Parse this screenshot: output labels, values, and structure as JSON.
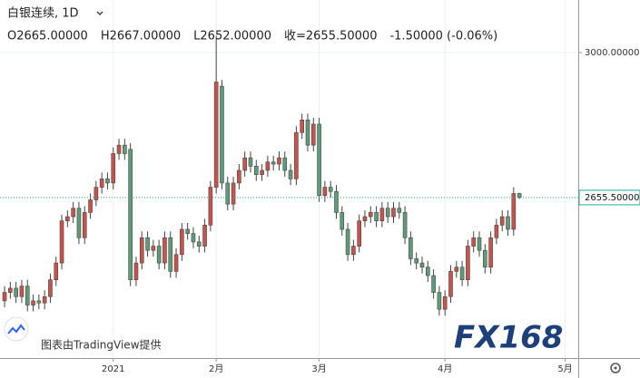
{
  "chart_data": {
    "type": "candlestick",
    "title": "白银连续, 1D",
    "legend_values": [
      "O2665.00000",
      "H2667.00000",
      "L2652.00000",
      "收=2655.50000",
      "-1.50000 (-0.06%)"
    ],
    "credit": "图表由TradingView提供",
    "watermark": "FX168",
    "up_color": "#c9524c",
    "down_color": "#5e9c78",
    "series": [
      {
        "open": [
          2410,
          2430,
          2440,
          2420,
          2445,
          2400,
          2410,
          2405,
          2420,
          2460,
          2500,
          2600,
          2610,
          2630,
          2560,
          2620,
          2650,
          2680,
          2700,
          2690,
          2760,
          2780,
          2770,
          2460,
          2500,
          2560,
          2530,
          2540,
          2500,
          2560,
          2480,
          2520,
          2580,
          2570,
          2550,
          2540,
          2590,
          2680,
          2920,
          2690,
          2640,
          2690,
          2720,
          2750,
          2730,
          2710,
          2720,
          2740,
          2735,
          2750,
          2720,
          2700,
          2810,
          2840,
          2780,
          2830,
          2660,
          2680,
          2670,
          2620,
          2580,
          2520,
          2540,
          2600,
          2610,
          2620,
          2600,
          2630,
          2610,
          2630,
          2620,
          2560,
          2510,
          2500,
          2490,
          2470,
          2430,
          2390,
          2420,
          2480,
          2490,
          2460,
          2540,
          2560,
          2530,
          2490,
          2560,
          2590,
          2610,
          2580,
          2665
        ],
        "high": [
          2445,
          2455,
          2455,
          2460,
          2460,
          2425,
          2425,
          2435,
          2475,
          2515,
          2615,
          2625,
          2645,
          2645,
          2635,
          2665,
          2695,
          2715,
          2715,
          2775,
          2795,
          2795,
          2785,
          2515,
          2575,
          2575,
          2555,
          2555,
          2575,
          2575,
          2535,
          2595,
          2595,
          2585,
          2565,
          2605,
          2695,
          3040,
          2935,
          2705,
          2705,
          2735,
          2765,
          2765,
          2745,
          2735,
          2755,
          2755,
          2765,
          2765,
          2735,
          2825,
          2855,
          2855,
          2845,
          2845,
          2695,
          2695,
          2685,
          2635,
          2595,
          2555,
          2615,
          2625,
          2635,
          2635,
          2645,
          2645,
          2645,
          2645,
          2635,
          2575,
          2525,
          2515,
          2505,
          2485,
          2445,
          2435,
          2495,
          2505,
          2505,
          2555,
          2575,
          2575,
          2545,
          2575,
          2605,
          2625,
          2625,
          2680,
          2667
        ],
        "low": [
          2395,
          2415,
          2405,
          2405,
          2385,
          2385,
          2390,
          2390,
          2405,
          2445,
          2485,
          2585,
          2595,
          2545,
          2545,
          2605,
          2635,
          2665,
          2675,
          2675,
          2745,
          2745,
          2445,
          2445,
          2485,
          2515,
          2515,
          2485,
          2485,
          2465,
          2465,
          2505,
          2555,
          2535,
          2525,
          2525,
          2575,
          2665,
          2675,
          2625,
          2625,
          2675,
          2705,
          2715,
          2695,
          2695,
          2705,
          2720,
          2720,
          2705,
          2685,
          2685,
          2795,
          2765,
          2765,
          2645,
          2645,
          2655,
          2605,
          2565,
          2505,
          2505,
          2525,
          2585,
          2595,
          2585,
          2585,
          2595,
          2595,
          2605,
          2545,
          2495,
          2485,
          2475,
          2455,
          2415,
          2375,
          2375,
          2405,
          2465,
          2445,
          2445,
          2525,
          2515,
          2475,
          2475,
          2545,
          2575,
          2565,
          2565,
          2652
        ],
        "close": [
          2430,
          2440,
          2420,
          2445,
          2400,
          2410,
          2405,
          2420,
          2460,
          2500,
          2600,
          2610,
          2630,
          2560,
          2620,
          2650,
          2680,
          2700,
          2690,
          2760,
          2780,
          2760,
          2460,
          2500,
          2560,
          2530,
          2540,
          2500,
          2560,
          2480,
          2520,
          2580,
          2570,
          2550,
          2540,
          2590,
          2680,
          2930,
          2690,
          2640,
          2690,
          2720,
          2750,
          2730,
          2710,
          2720,
          2740,
          2735,
          2750,
          2720,
          2700,
          2810,
          2840,
          2780,
          2830,
          2660,
          2680,
          2670,
          2620,
          2580,
          2520,
          2540,
          2600,
          2610,
          2620,
          2600,
          2630,
          2610,
          2630,
          2620,
          2560,
          2510,
          2500,
          2490,
          2470,
          2430,
          2390,
          2420,
          2480,
          2490,
          2460,
          2540,
          2560,
          2530,
          2490,
          2560,
          2590,
          2610,
          2580,
          2665,
          2655.5
        ]
      }
    ],
    "xlim": [
      -0.8,
      100.3
    ],
    "xticks": [
      {
        "value": 19,
        "label": "2021"
      },
      {
        "value": 37,
        "label": "2月"
      },
      {
        "value": 55,
        "label": "3月"
      },
      {
        "value": 77,
        "label": "4月"
      },
      {
        "value": 98,
        "label": "5月"
      }
    ],
    "ylim": [
      2274,
      3125
    ],
    "yticks": [
      {
        "value": 3000,
        "label": "3000.00000"
      }
    ],
    "last_price": {
      "value": 2655.5,
      "label": "2655.50000",
      "color": "#26a69a"
    },
    "grid": true
  }
}
